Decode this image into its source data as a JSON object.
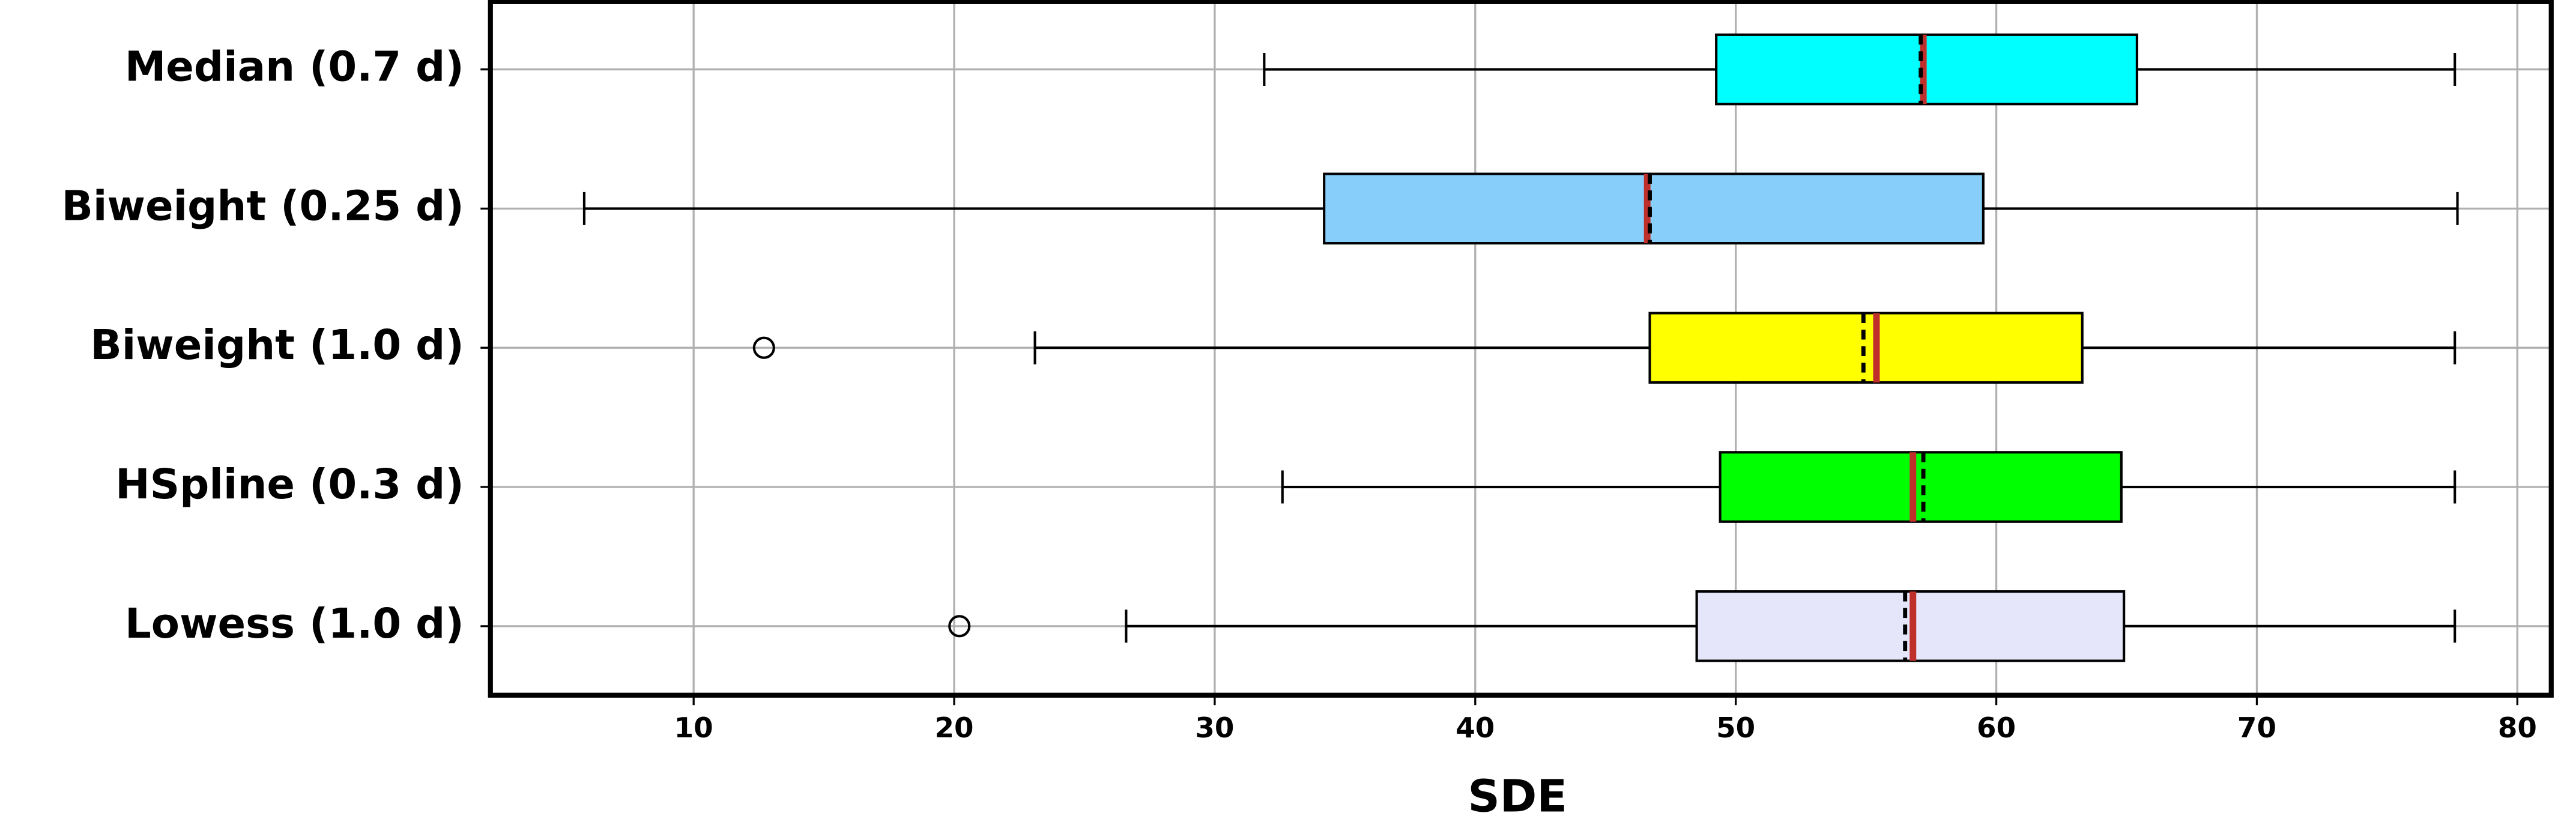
{
  "chart_data": {
    "type": "box",
    "xlabel": "SDE",
    "boxes": [
      {
        "name": "Median (0.7 d)",
        "color": "#00ffff",
        "whislo": 31.9,
        "q1": 49.25,
        "median": 57.2,
        "mean": 57.1,
        "q3": 65.4,
        "whishi": 77.6,
        "outliers": []
      },
      {
        "name": "Biweight (0.25 d)",
        "color": "#87cefa",
        "whislo": 5.8,
        "q1": 34.2,
        "median": 46.6,
        "mean": 46.7,
        "q3": 59.5,
        "whishi": 77.7,
        "outliers": []
      },
      {
        "name": "Biweight (1.0 d)",
        "color": "#ffff00",
        "whislo": 23.1,
        "q1": 46.7,
        "median": 55.4,
        "mean": 54.9,
        "q3": 63.3,
        "whishi": 77.6,
        "outliers": [
          12.7
        ]
      },
      {
        "name": "HSpline (0.3 d)",
        "color": "#00ff00",
        "whislo": 32.6,
        "q1": 49.4,
        "median": 56.8,
        "mean": 57.2,
        "q3": 64.8,
        "whishi": 77.6,
        "outliers": []
      },
      {
        "name": "Lowess (1.0 d)",
        "color": "#e6e6fa",
        "whislo": 26.6,
        "q1": 48.5,
        "median": 56.8,
        "mean": 56.5,
        "q3": 64.9,
        "whishi": 77.6,
        "outliers": [
          20.2
        ]
      }
    ],
    "median_color": "#c0302a",
    "mean_color": "#000000",
    "xlim": [
      2.2,
      81.3
    ],
    "xticks": [
      10,
      20,
      30,
      40,
      50,
      60,
      70,
      80
    ],
    "grid": true
  }
}
